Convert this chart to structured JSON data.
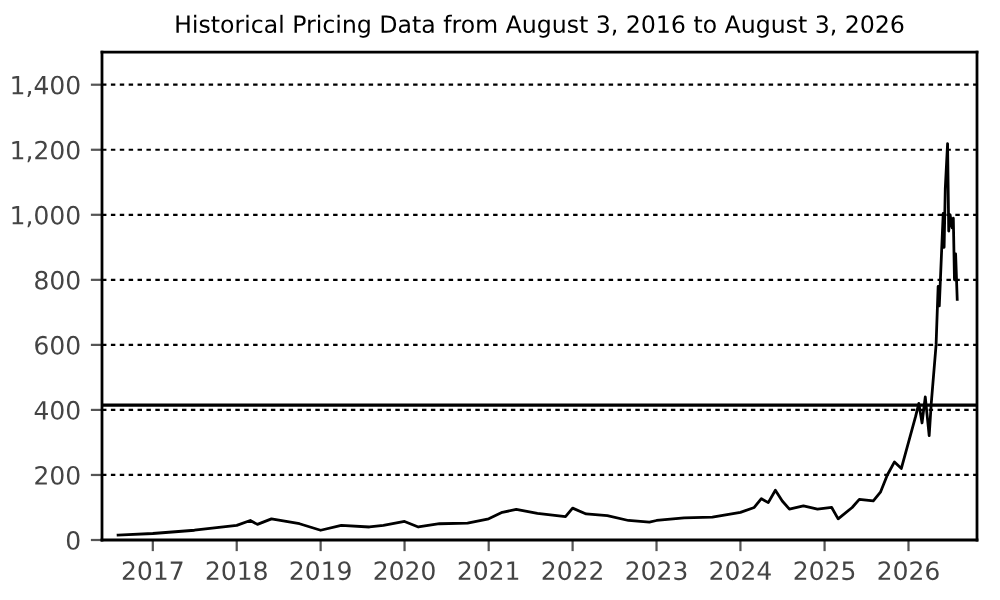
{
  "chart_data": {
    "type": "line",
    "title": "Historical Pricing Data from August 3, 2016 to August 3, 2026",
    "x": [
      "2016-08-03",
      "2017-01-01",
      "2017-07-01",
      "2018-01-01",
      "2018-03-01",
      "2018-04-01",
      "2018-06-01",
      "2018-10-01",
      "2019-01-01",
      "2019-04-01",
      "2019-08-01",
      "2019-10-01",
      "2020-01-01",
      "2020-03-01",
      "2020-06-01",
      "2020-10-01",
      "2021-01-01",
      "2021-03-01",
      "2021-05-01",
      "2021-08-01",
      "2021-12-01",
      "2022-01-01",
      "2022-03-01",
      "2022-06-01",
      "2022-09-01",
      "2022-12-01",
      "2023-01-01",
      "2023-05-01",
      "2023-09-01",
      "2024-01-01",
      "2024-03-01",
      "2024-04-01",
      "2024-05-01",
      "2024-06-01",
      "2024-07-01",
      "2024-08-01",
      "2024-10-01",
      "2024-12-01",
      "2025-02-01",
      "2025-03-01",
      "2025-05-01",
      "2025-06-01",
      "2025-08-01",
      "2025-09-01",
      "2025-10-01",
      "2025-11-01",
      "2025-12-01",
      "2026-01-01",
      "2026-02-01",
      "2026-02-15",
      "2026-03-01",
      "2026-03-15",
      "2026-04-01",
      "2026-04-10",
      "2026-05-01",
      "2026-05-10",
      "2026-05-15",
      "2026-06-01",
      "2026-06-05",
      "2026-06-10",
      "2026-06-20",
      "2026-06-25",
      "2026-07-01",
      "2026-07-10",
      "2026-07-15",
      "2026-07-20",
      "2026-07-25",
      "2026-08-01"
    ],
    "series": [
      {
        "color": "#000000",
        "values": [
          15,
          20,
          30,
          45,
          60,
          48,
          65,
          50,
          30,
          45,
          40,
          45,
          57,
          40,
          50,
          52,
          65,
          85,
          94,
          82,
          72,
          98,
          80,
          75,
          60,
          55,
          60,
          68,
          70,
          85,
          100,
          127,
          115,
          153,
          120,
          95,
          105,
          95,
          100,
          65,
          100,
          125,
          120,
          147,
          200,
          240,
          220,
          300,
          380,
          420,
          360,
          440,
          321,
          420,
          600,
          780,
          720,
          1004,
          900,
          1080,
          1219,
          950,
          1000,
          960,
          990,
          800,
          880,
          740
        ]
      }
    ],
    "xlim": [
      "2016-05-25",
      "2026-10-26"
    ],
    "xticks": [
      {
        "value": "2017-01-01",
        "label": "2017"
      },
      {
        "value": "2018-01-01",
        "label": "2018"
      },
      {
        "value": "2019-01-01",
        "label": "2019"
      },
      {
        "value": "2020-01-01",
        "label": "2020"
      },
      {
        "value": "2021-01-01",
        "label": "2021"
      },
      {
        "value": "2022-01-01",
        "label": "2022"
      },
      {
        "value": "2023-01-01",
        "label": "2023"
      },
      {
        "value": "2024-01-01",
        "label": "2024"
      },
      {
        "value": "2025-01-01",
        "label": "2025"
      },
      {
        "value": "2026-01-01",
        "label": "2026"
      }
    ],
    "ylim": [
      0,
      1500
    ],
    "yticks": [
      0,
      {
        "value": 200,
        "label": "200"
      },
      {
        "value": 400,
        "label": "400"
      },
      {
        "value": 600,
        "label": "600"
      },
      {
        "value": 800,
        "label": "800"
      },
      {
        "value": 1000,
        "label": "1,000"
      },
      {
        "value": 1200,
        "label": "1,200"
      },
      {
        "value": 1400,
        "label": "1,400"
      }
    ],
    "ref_lines": [
      {
        "axis": "y",
        "value": 415,
        "color": "#000000",
        "line_style": "solid"
      }
    ],
    "grid": "y",
    "legend": false,
    "marker": "none",
    "line_style": "solid"
  }
}
